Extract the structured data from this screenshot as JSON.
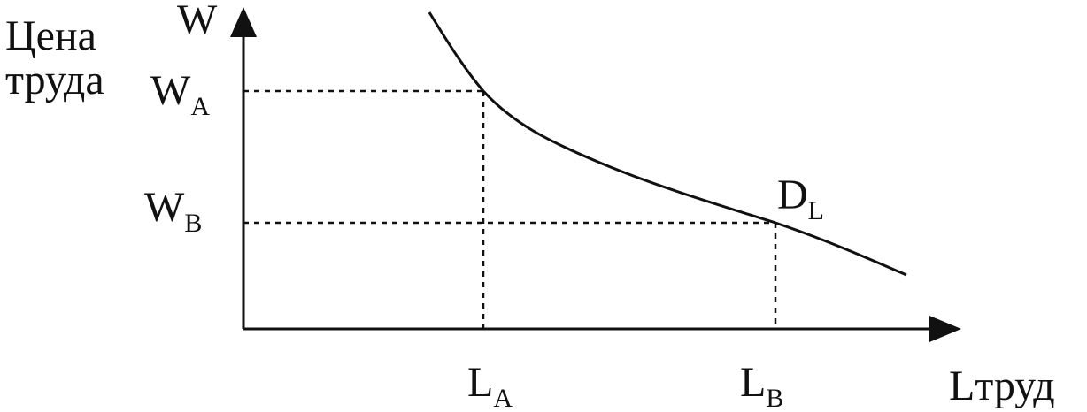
{
  "axes": {
    "y_title_line1": "Цена",
    "y_title_line2": "труда",
    "y_symbol": "W",
    "x_symbol": "Lтруд"
  },
  "points": {
    "wa_main": "W",
    "wa_sub": "A",
    "wb_main": "W",
    "wb_sub": "B",
    "la_main": "L",
    "la_sub": "A",
    "lb_main": "L",
    "lb_sub": "B"
  },
  "curve": {
    "label_main": "D",
    "label_sub": "L"
  },
  "colors": {
    "ink": "#111111",
    "background": "#ffffff"
  }
}
